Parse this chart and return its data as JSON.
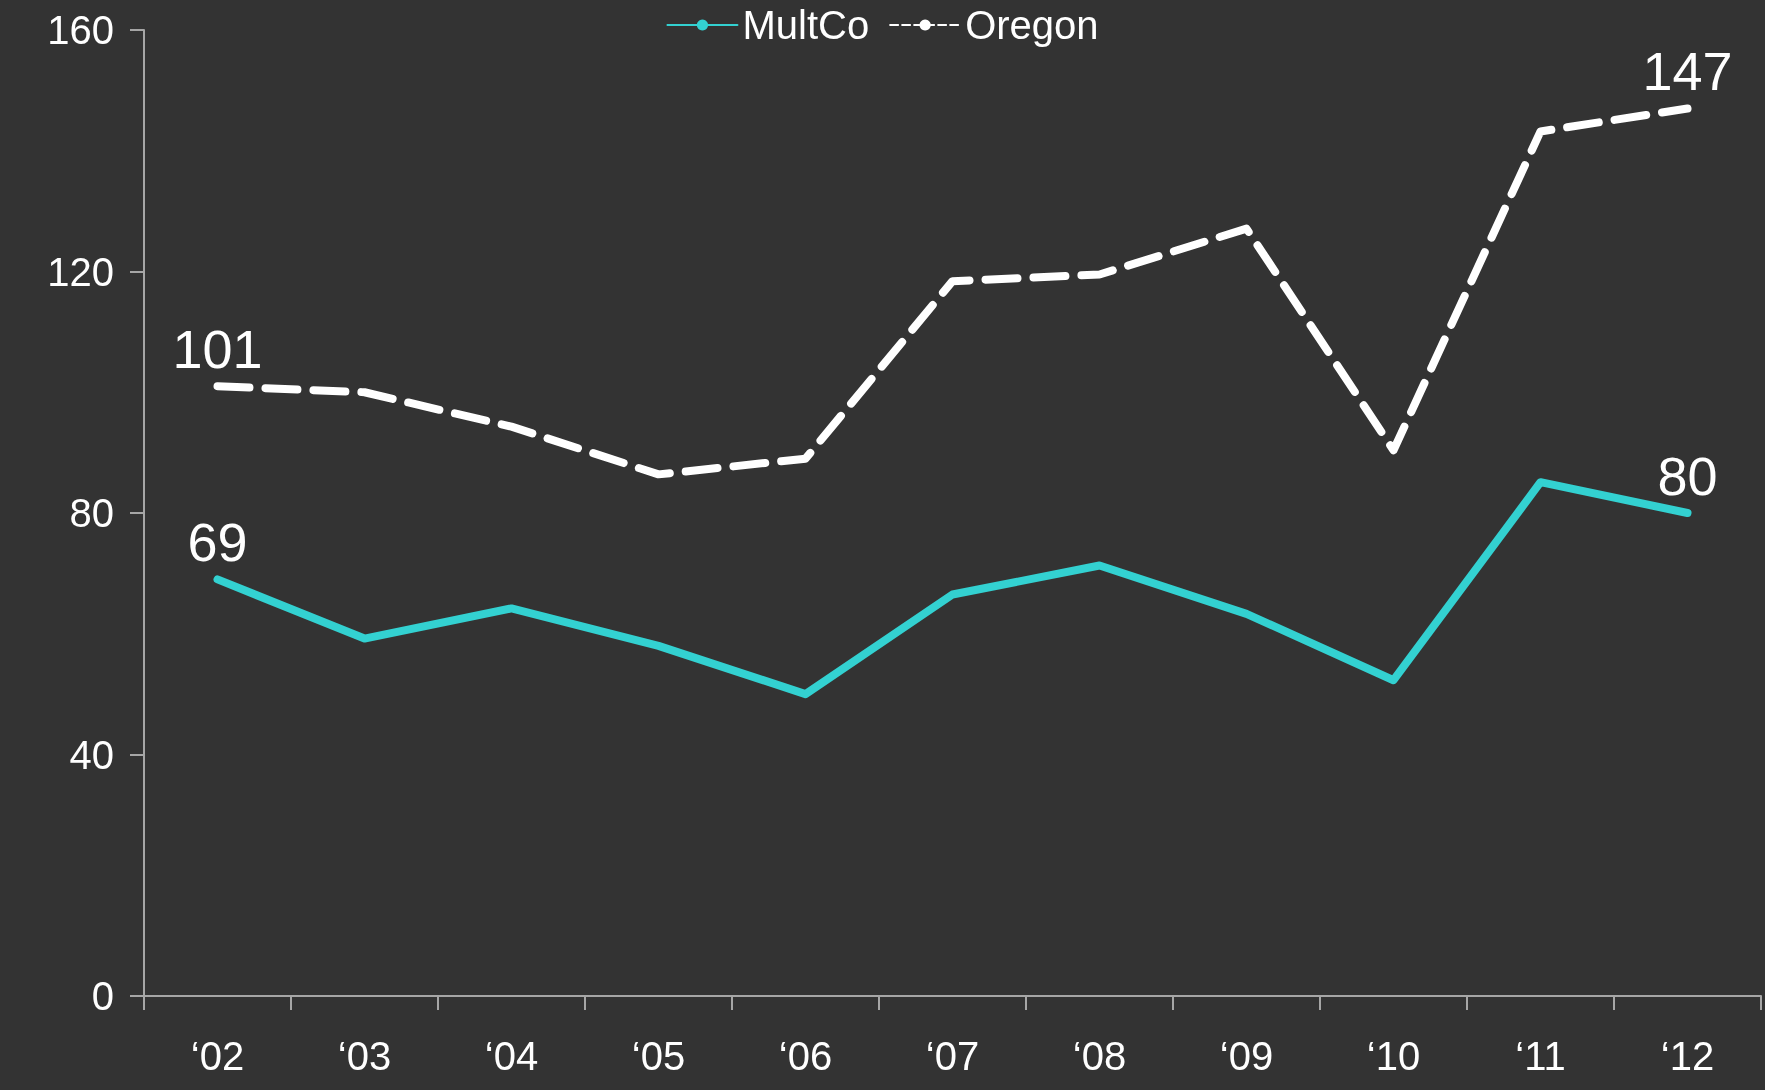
{
  "chart_data": {
    "type": "line",
    "categories": [
      "‘02",
      "‘03",
      "‘04",
      "‘05",
      "‘06",
      "‘07",
      "‘08",
      "‘09",
      "‘10",
      "‘11",
      "‘12"
    ],
    "series": [
      {
        "name": "MultCo",
        "color": "#33d1d1",
        "line_style": "solid",
        "values": [
          69,
          59.2,
          64.2,
          58,
          50,
          66.5,
          71.3,
          63.3,
          52.3,
          85.1,
          80
        ],
        "value_labels": [
          "69",
          null,
          null,
          null,
          null,
          null,
          null,
          null,
          null,
          null,
          "80"
        ]
      },
      {
        "name": "Oregon",
        "color": "#ffffff",
        "line_style": "dashed",
        "values": [
          101,
          100,
          94.3,
          86.4,
          89,
          118.4,
          119.5,
          127.1,
          90.4,
          143.2,
          147
        ],
        "value_labels": [
          "101",
          null,
          null,
          null,
          null,
          null,
          null,
          null,
          null,
          null,
          "147"
        ]
      }
    ],
    "ylim": [
      0,
      160
    ],
    "yticks": [
      0,
      40,
      80,
      120,
      160
    ],
    "grid": false,
    "legend": "top",
    "marker": "none"
  }
}
